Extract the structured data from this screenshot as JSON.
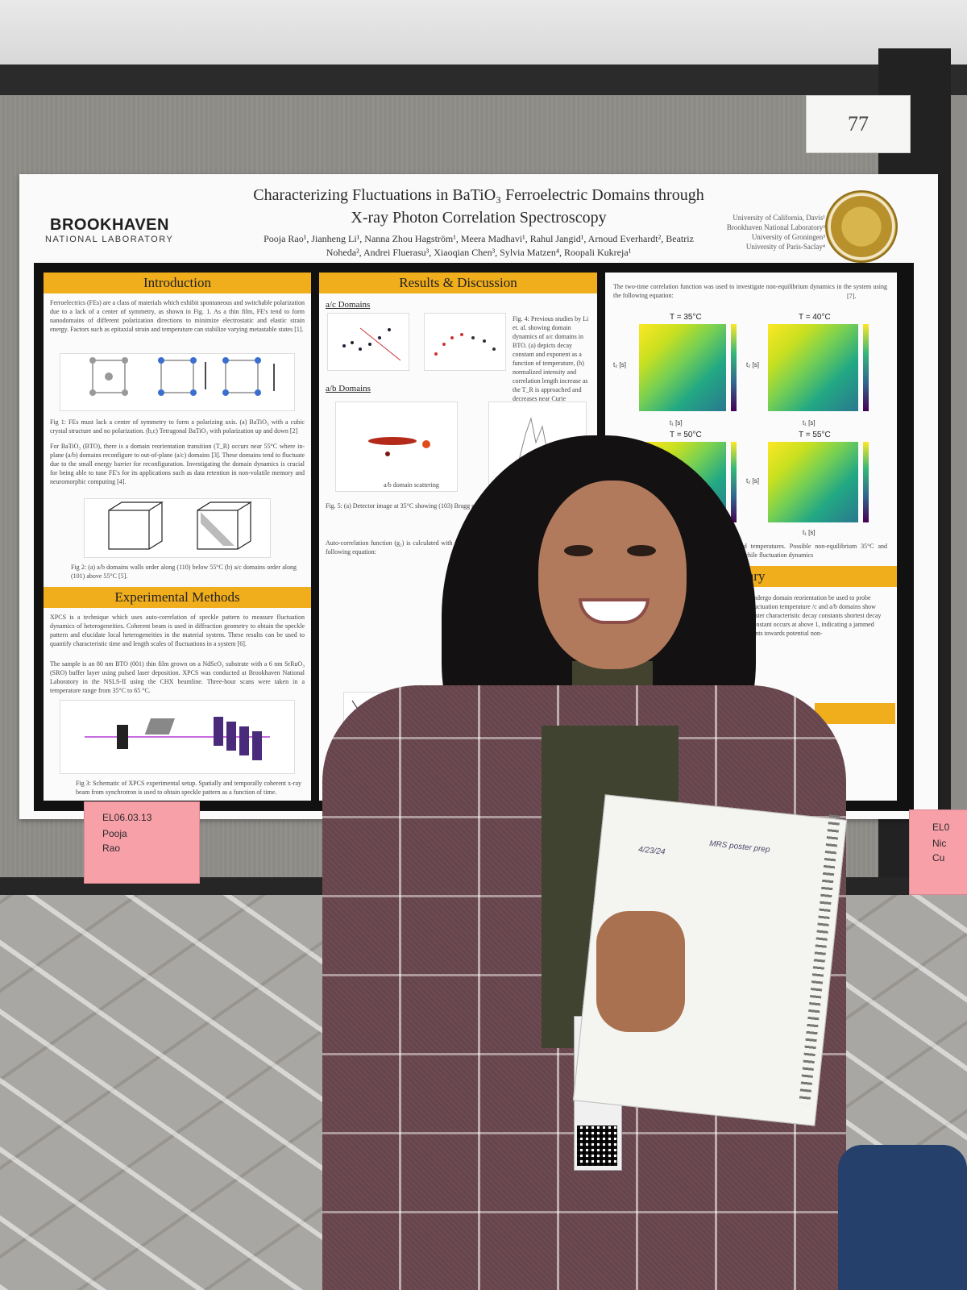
{
  "stand": {
    "number": "77"
  },
  "poster": {
    "title_line1": "Characterizing Fluctuations in BaTiO₃ Ferroelectric Domains through",
    "title_line2": "X-ray Photon Correlation Spectroscopy",
    "authors_line1": "Pooja Rao¹, Jianheng Li¹, Nanna Zhou Hagström¹, Meera Madhavi¹, Rahul Jangid¹, Arnoud Everhardt², Beatriz",
    "authors_line2": "Noheda², Andrei Fluerasu³, Xiaoqian Chen³, Sylvia Matzen⁴, Roopali Kukreja¹",
    "logo_name": "BROOKHAVEN",
    "logo_sub": "NATIONAL LABORATORY",
    "affiliations": [
      "University of California, Davis¹",
      "Brookhaven National Laboratory²",
      "University of Groningen³",
      "University of Paris-Saclay⁴"
    ],
    "sections": {
      "introduction": "Introduction",
      "results": "Results & Discussion",
      "methods": "Experimental Methods",
      "summary": "mary"
    },
    "intro_text": "Ferroelectrics (FEs) are a class of materials which exhibit spontaneous and switchable polarization due to a lack of a center of symmetry, as shown in Fig. 1. As a thin film, FE's tend to form nanodomains of different polarization directions to minimize electrostatic and elastic strain energy. Factors such as epitaxial strain and temperature can stabilize varying metastable states [1].",
    "fig1_caption": "Fig 1: FEs must lack a center of symmetry to form a polarizing axis. (a) BaTiO₃ with a cubic crystal structure and no polarization. (b,c) Tetragonal BaTiO₃ with polarization up and down [2]",
    "intro_text2": "For BaTiO₃ (BTO), there is a domain reorientation transition (T_R) occurs near 55°C where in-plane (a/b) domains reconfigure to out-of-plane (a/c) domains [3]. These domains tend to fluctuate due to the small energy barrier for reconfiguration. Investigating the domain dynamics is crucial for being able to tune FE's for its applications such as data retention in non-volatile memory and neuromorphic computing [4].",
    "fig2_caption": "Fig 2: (a) a/b domains walls order along (110) below 55°C (b) a/c domains order along (101) above 55°C [5].",
    "methods_text": "XPCS is a technique which uses auto-correlation of speckle pattern to measure fluctuation dynamics of heterogeneities. Coherent beam is used in diffraction geometry to obtain the speckle pattern and elucidate local heterogeneities in the material system. These results can be used to quantify characteristic time and length scales of fluctuations in a system [6].",
    "methods_text2": "The sample is an 80 nm BTO (001) thin film grown on a NdScO₃ substrate with a 6 nm SrRuO₃ (SRO) buffer layer using pulsed laser deposition. XPCS was conducted at Brookhaven National Laboratory in the NSLS-II using the CHX beamline. Three-hour scans were taken in a temperature range from 35°C to 65 °C.",
    "fig3_caption": "Fig 3: Schematic of XPCS experimental setup. Spatially and temporally coherent x-ray beam from synchrotron is used to obtain speckle pattern as a function of time.",
    "ac_domains": "a/c Domains",
    "ab_domains": "a/b Domains",
    "fig4_caption": "Fig. 4: Previous studies by Li et. al. showing domain dynamics of a/c domains in BTO. (a) depicts decay constant and exponent as a function of temperature, (b) normalized intensity and correlation length increase as the T_R is approached and decreases near Curie temperature [4].",
    "ab_scatter_label": "a/b domain scattering",
    "fig5_caption": "Fig. 5: (a) Detector image at 35°C showing (103) Bragg peaks of the",
    "autocorr_text": "Auto-correlation function (g₂) is calculated with the following equation:",
    "col3_intro": "The two-time correlation function was used to investigate non-equilibrium dynamics in the system using the following equation:",
    "col3_ref": "[7].",
    "heatmaps": [
      {
        "title": "T = 35°C"
      },
      {
        "title": "T = 40°C"
      },
      {
        "title": "T = 50°C"
      },
      {
        "title": "T = 55°C"
      }
    ],
    "axis_x": "t₁ [s]",
    "axis_y": "t₂ [s]",
    "col3_caption": "selected temperatures. Possible non-equilibrium 35°C and 40°C) while fluctuation dynamics",
    "summary_text": "undergo domain reorientation be used to probe fluctuation temperature /c and a/b domains show faster characteristic decay constants shortest decay constant occurs at above 1, indicating a jammed hints towards potential non-"
  },
  "card_left": {
    "line1": "EL06.03.13",
    "line2": "Pooja",
    "line3": "Rao"
  },
  "card_right": {
    "line1": "EL0",
    "line2": "Nic",
    "line3": "Cu"
  },
  "notebook": {
    "date": "4/23/24",
    "heading": "MRS poster prep"
  }
}
